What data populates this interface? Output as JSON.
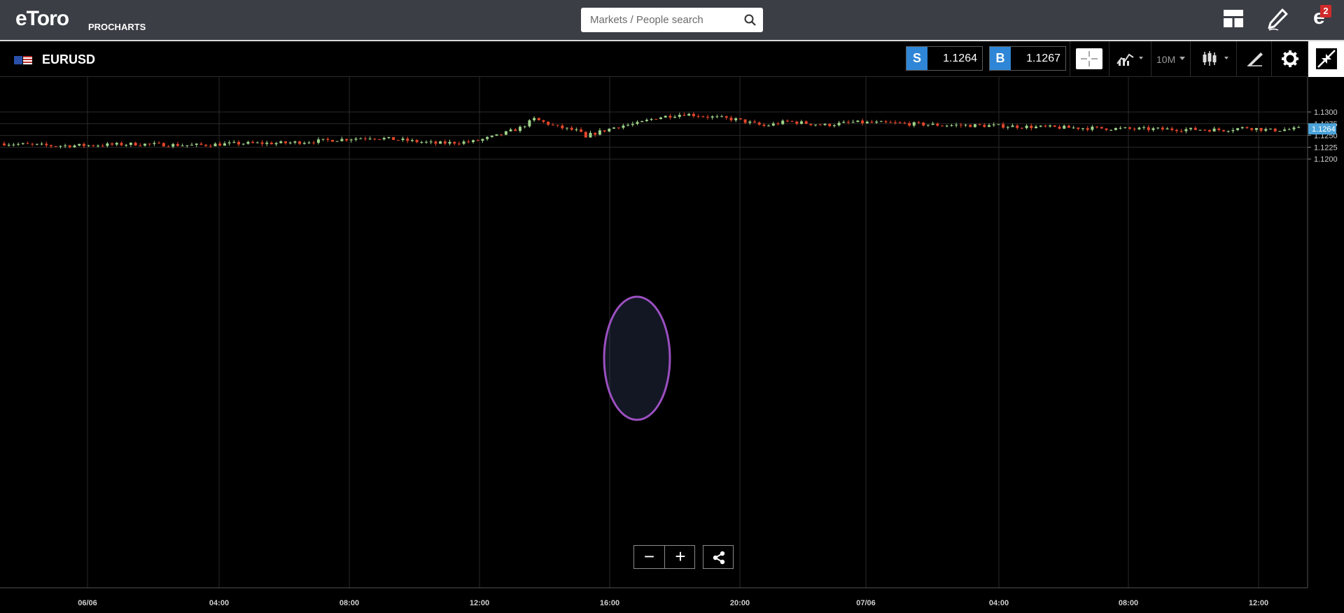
{
  "header": {
    "logo_text": "eToro",
    "logo_subtitle": "PROCHARTS",
    "search_placeholder": "Markets / People search",
    "notification_count": "2",
    "icons": [
      "layout-icon",
      "pencil-icon",
      "etoro-e-icon",
      "search-icon"
    ]
  },
  "toolbar": {
    "symbol": "EURUSD",
    "sell_label": "S",
    "sell_price": "1.1264",
    "buy_label": "B",
    "buy_price": "1.1267",
    "interval": "10M",
    "colors": {
      "sell": "#2f86d6",
      "buy": "#2f86d6"
    }
  },
  "chart_data": {
    "type": "candlestick",
    "symbol": "EURUSD",
    "interval": "10M",
    "y_ticks": [
      "1.1300",
      "1.1275",
      "1.1250",
      "1.1225",
      "1.1200"
    ],
    "ylim": [
      1.1199,
      1.1317
    ],
    "x_ticks": [
      "06/06",
      "04:00",
      "08:00",
      "12:00",
      "16:00",
      "20:00",
      "07/06",
      "04:00",
      "08:00",
      "12:00"
    ],
    "current_price_label": "1.1264",
    "colors": {
      "up": "#9fd38a",
      "down": "#e2452a",
      "grid": "#2a2a2a",
      "highlight": "#9b4fc0",
      "price_tag": "#4ba3d9"
    },
    "anchors": [
      [
        0,
        1.1233
      ],
      [
        10,
        1.1228
      ],
      [
        18,
        1.1229
      ],
      [
        28,
        1.1232
      ],
      [
        40,
        1.1229
      ],
      [
        50,
        1.1233
      ],
      [
        60,
        1.1234
      ],
      [
        68,
        1.1239
      ],
      [
        78,
        1.1246
      ],
      [
        84,
        1.1241
      ],
      [
        92,
        1.1233
      ],
      [
        100,
        1.1237
      ],
      [
        105,
        1.1249
      ],
      [
        110,
        1.1266
      ],
      [
        113,
        1.1285
      ],
      [
        118,
        1.1268
      ],
      [
        122,
        1.126
      ],
      [
        124,
        1.1249
      ],
      [
        127,
        1.1258
      ],
      [
        131,
        1.127
      ],
      [
        135,
        1.1275
      ],
      [
        139,
        1.1288
      ],
      [
        145,
        1.1296
      ],
      [
        150,
        1.129
      ],
      [
        156,
        1.1284
      ],
      [
        162,
        1.127
      ],
      [
        167,
        1.128
      ],
      [
        175,
        1.1272
      ],
      [
        181,
        1.1278
      ],
      [
        190,
        1.1276
      ],
      [
        200,
        1.1272
      ],
      [
        210,
        1.1271
      ],
      [
        220,
        1.1268
      ],
      [
        230,
        1.1266
      ],
      [
        240,
        1.1264
      ],
      [
        252,
        1.1263
      ],
      [
        260,
        1.1262
      ],
      [
        265,
        1.1267
      ],
      [
        270,
        1.1261
      ],
      [
        276,
        1.1264
      ]
    ],
    "highlight_index": 124
  },
  "controls": {
    "zoom_out_label": "−",
    "zoom_in_label": "+"
  }
}
